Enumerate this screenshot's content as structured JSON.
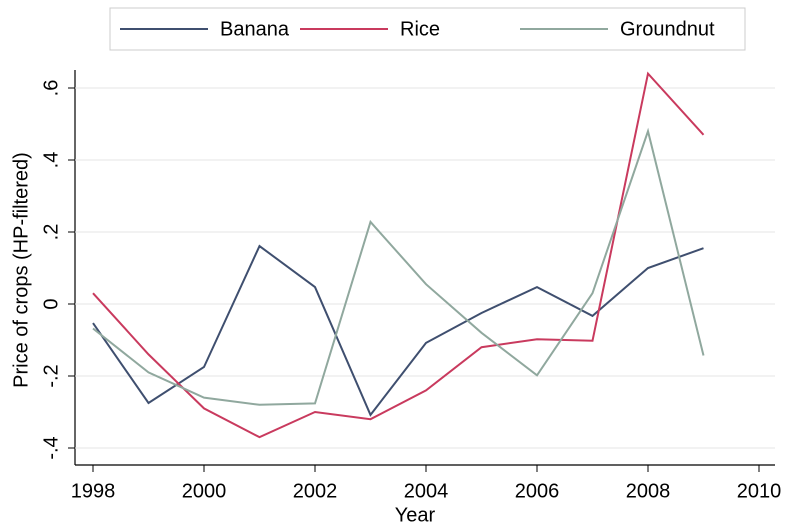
{
  "chart_data": {
    "type": "line",
    "x_label": "Year",
    "y_label": "Price of crops (HP-filtered)",
    "x": [
      1998,
      1999,
      2000,
      2001,
      2002,
      2003,
      2004,
      2005,
      2006,
      2007,
      2008,
      2009
    ],
    "series": [
      {
        "name": "Banana",
        "color": "#3f4f6f",
        "values": [
          -0.053,
          -0.275,
          -0.175,
          0.161,
          0.047,
          -0.308,
          -0.108,
          -0.025,
          0.047,
          -0.033,
          0.1,
          0.155
        ]
      },
      {
        "name": "Rice",
        "color": "#c93a5e",
        "values": [
          0.03,
          -0.14,
          -0.29,
          -0.37,
          -0.3,
          -0.32,
          -0.24,
          -0.12,
          -0.098,
          -0.102,
          0.64,
          0.47
        ]
      },
      {
        "name": "Groundnut",
        "color": "#90a89e",
        "values": [
          -0.068,
          -0.19,
          -0.26,
          -0.28,
          -0.276,
          0.228,
          0.055,
          -0.08,
          -0.198,
          0.03,
          0.48,
          -0.143
        ]
      }
    ],
    "xlim": [
      1998,
      2010
    ],
    "xticks": [
      1998,
      2000,
      2002,
      2004,
      2006,
      2008,
      2010
    ],
    "ylim": [
      -0.4,
      0.6
    ],
    "yticks": [
      {
        "value": -0.4,
        "label": "-.4"
      },
      {
        "value": -0.2,
        "label": "-.2"
      },
      0,
      {
        "value": 0.2,
        "label": ".2"
      },
      {
        "value": 0.4,
        "label": ".4"
      },
      {
        "value": 0.6,
        "label": ".6"
      }
    ],
    "grid": true,
    "legend": "top"
  }
}
